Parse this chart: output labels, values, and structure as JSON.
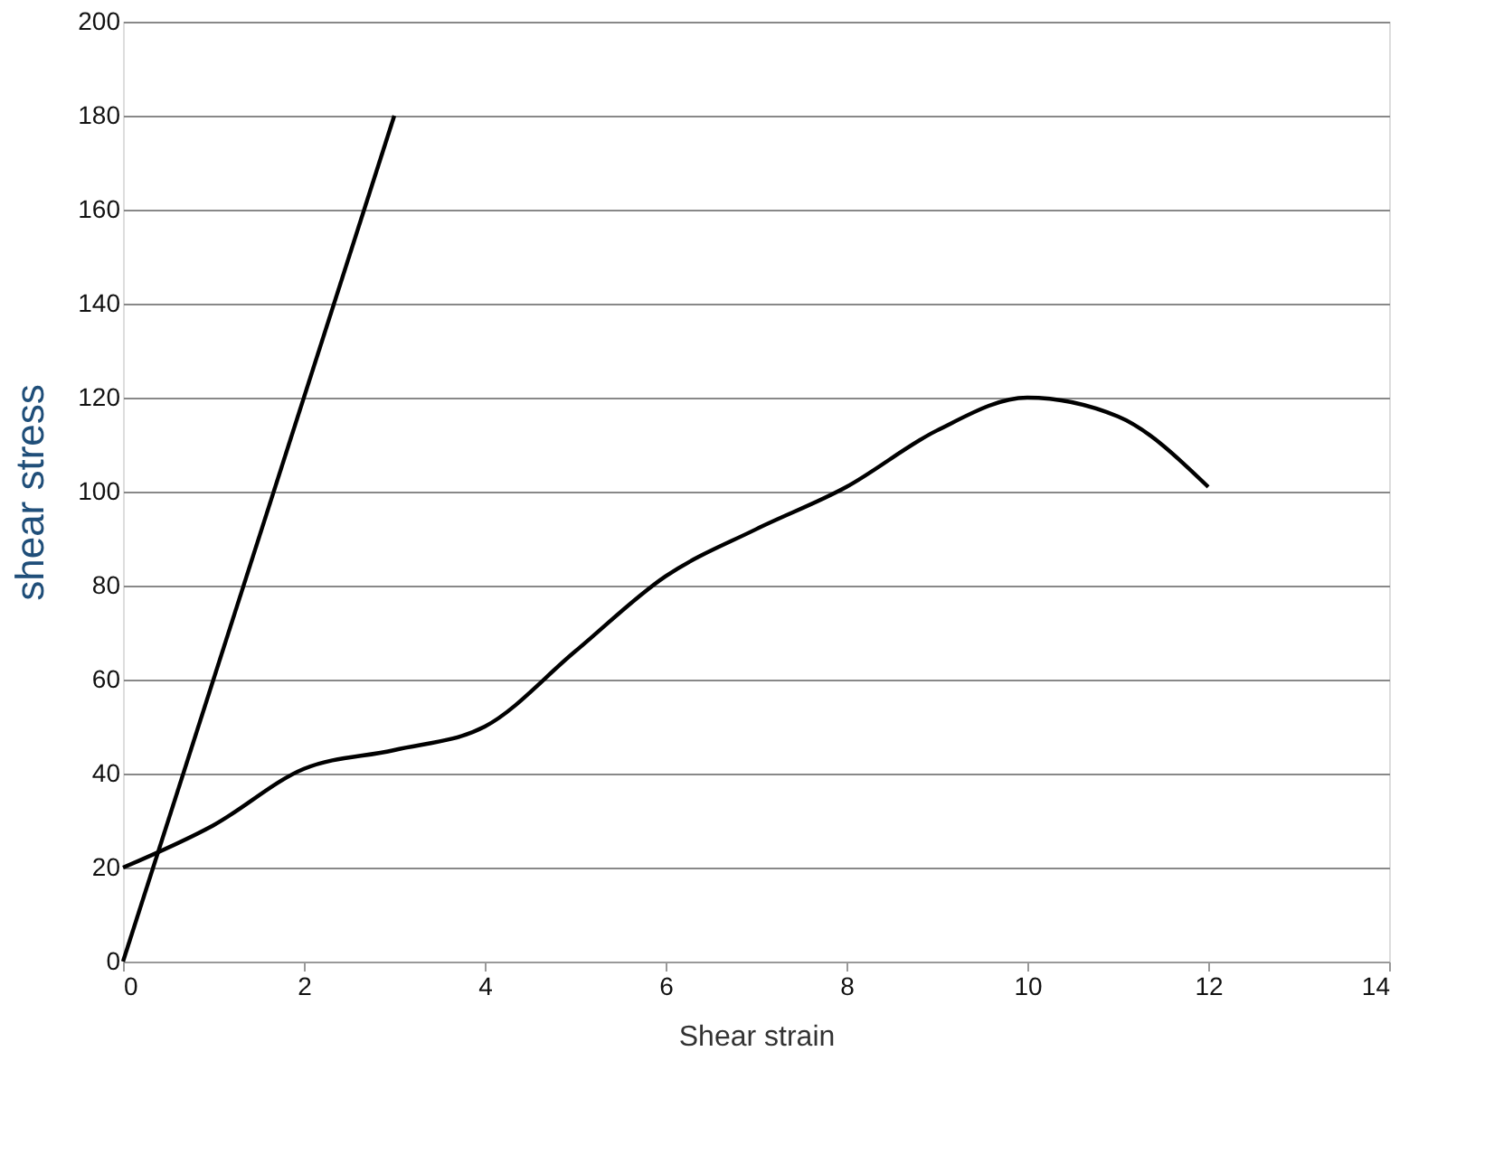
{
  "chart_data": {
    "type": "line",
    "xlabel": "Shear strain",
    "ylabel": "shear stress",
    "xlim": [
      0,
      14
    ],
    "xticks": [
      0,
      2,
      4,
      6,
      8,
      10,
      12,
      14
    ],
    "ylim": [
      0,
      200
    ],
    "yticks": [
      0,
      20,
      40,
      60,
      80,
      100,
      120,
      140,
      160,
      180,
      200
    ],
    "grid": "y",
    "marker": "none",
    "line_style": "solid",
    "series": [
      {
        "color": "#000000",
        "x": [
          0,
          3
        ],
        "values": [
          0,
          180
        ]
      },
      {
        "color": "#000000",
        "x": [
          0,
          1,
          2,
          3,
          4,
          5,
          6,
          7,
          8,
          9,
          10,
          11,
          12
        ],
        "values": [
          20,
          29,
          41,
          45,
          50,
          66,
          82,
          92,
          101,
          113,
          120,
          116,
          101
        ]
      }
    ]
  }
}
